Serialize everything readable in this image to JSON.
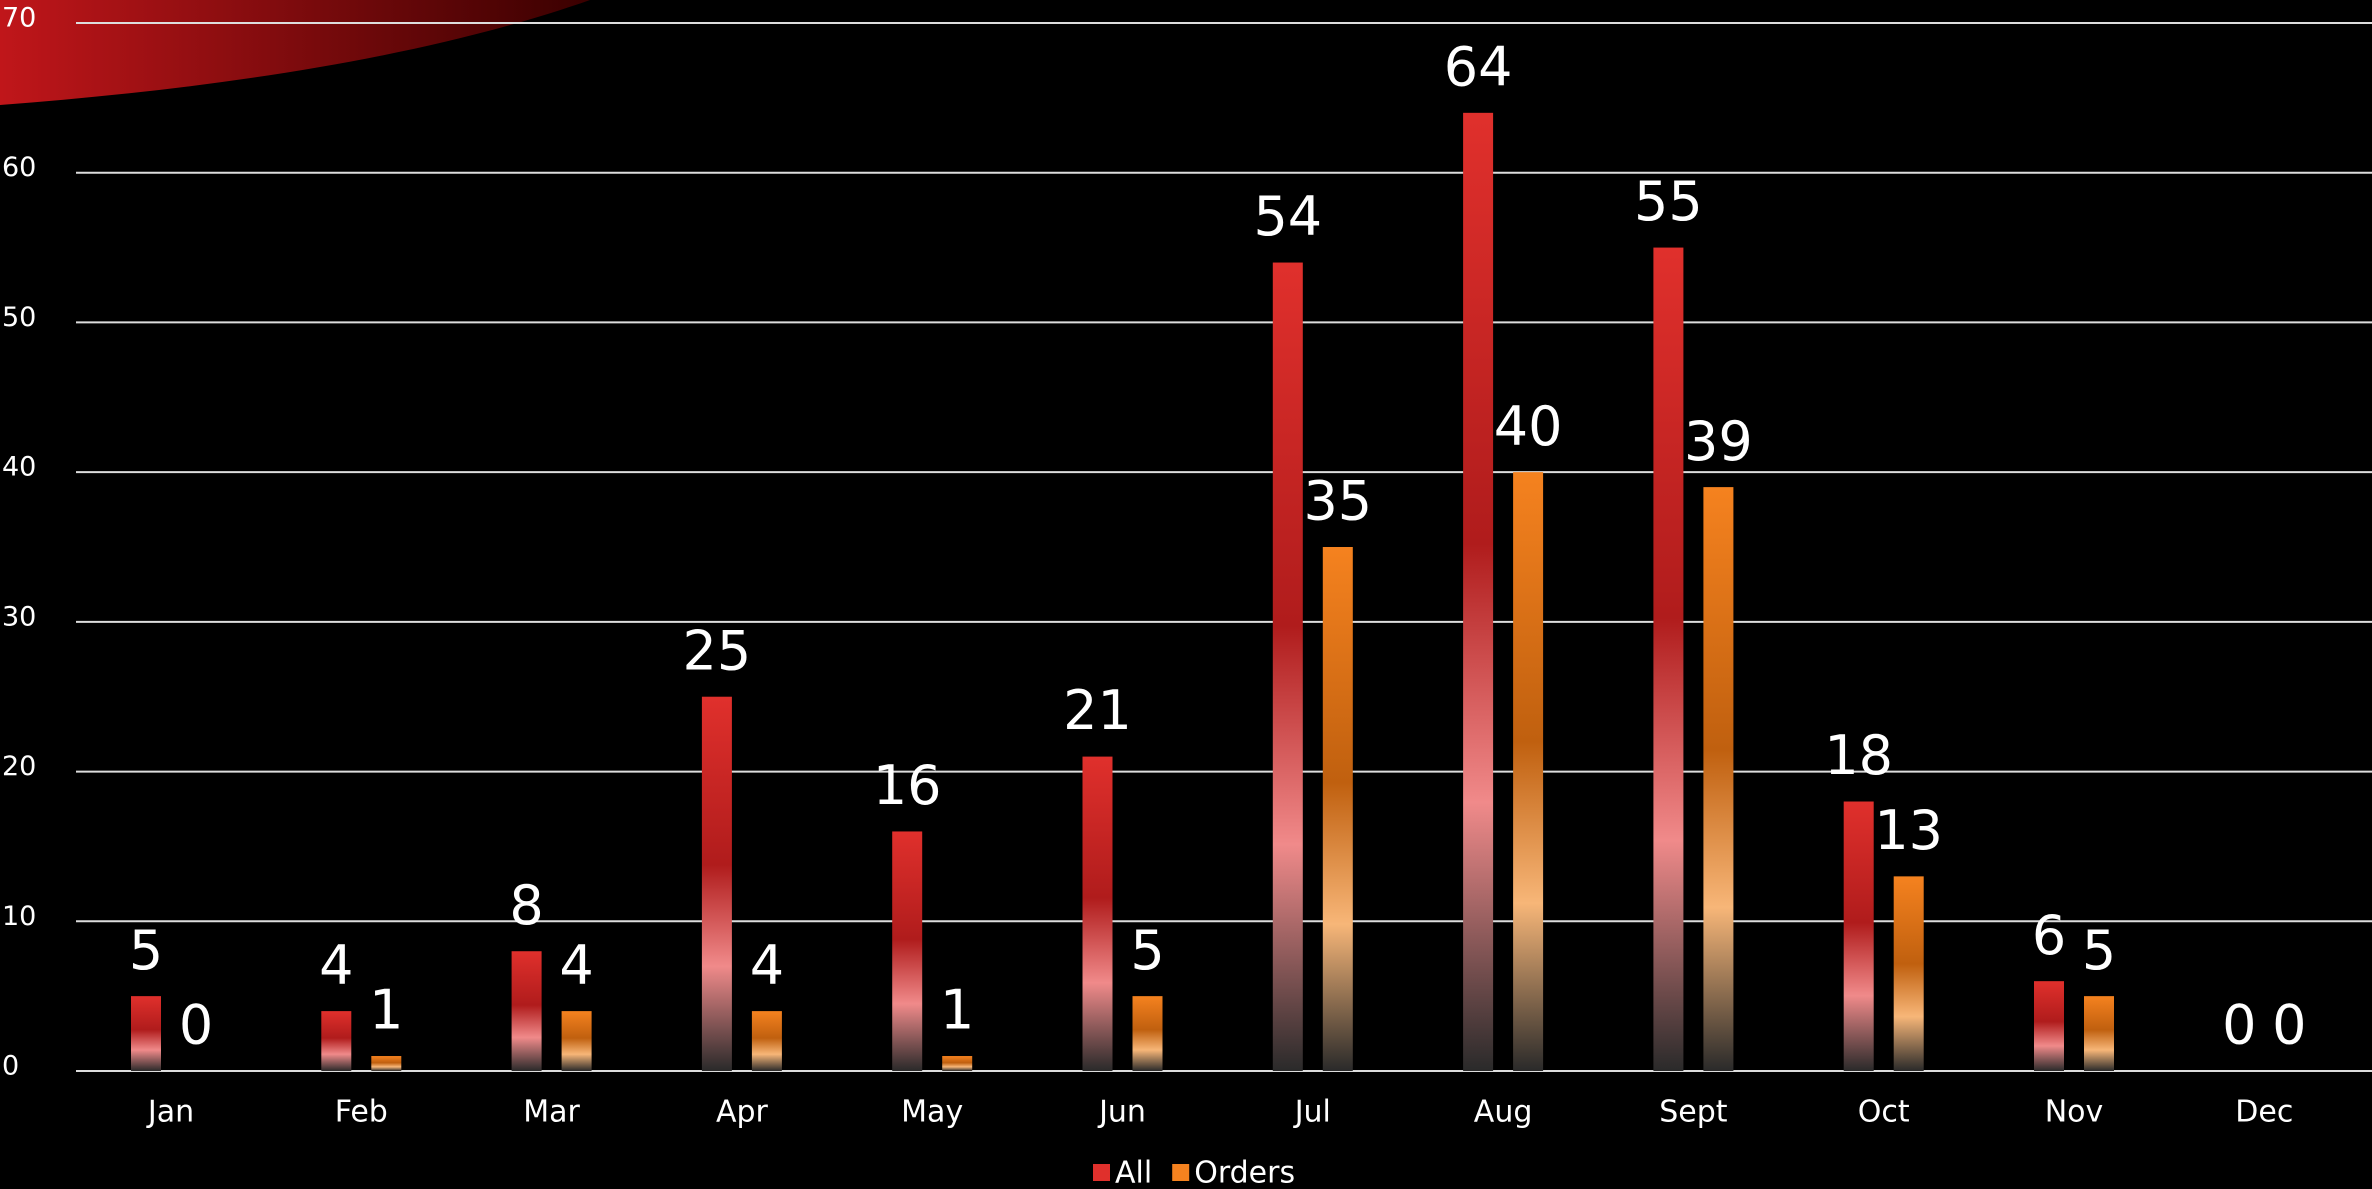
{
  "chart_data": {
    "type": "bar",
    "categories": [
      "Jan",
      "Feb",
      "Mar",
      "Apr",
      "May",
      "Jun",
      "Jul",
      "Aug",
      "Sept",
      "Oct",
      "Nov",
      "Dec"
    ],
    "series": [
      {
        "name": "All",
        "color": "#e0302c",
        "values": [
          5,
          4,
          8,
          25,
          16,
          21,
          54,
          64,
          55,
          18,
          6,
          0
        ]
      },
      {
        "name": "Orders",
        "color": "#f5821f",
        "values": [
          0,
          1,
          4,
          4,
          1,
          5,
          35,
          40,
          39,
          13,
          5,
          0
        ]
      }
    ],
    "ylim": [
      0,
      70
    ],
    "yticks": [
      0,
      10,
      20,
      30,
      40,
      50,
      60,
      70
    ],
    "grid": true,
    "legend": "bottom"
  }
}
